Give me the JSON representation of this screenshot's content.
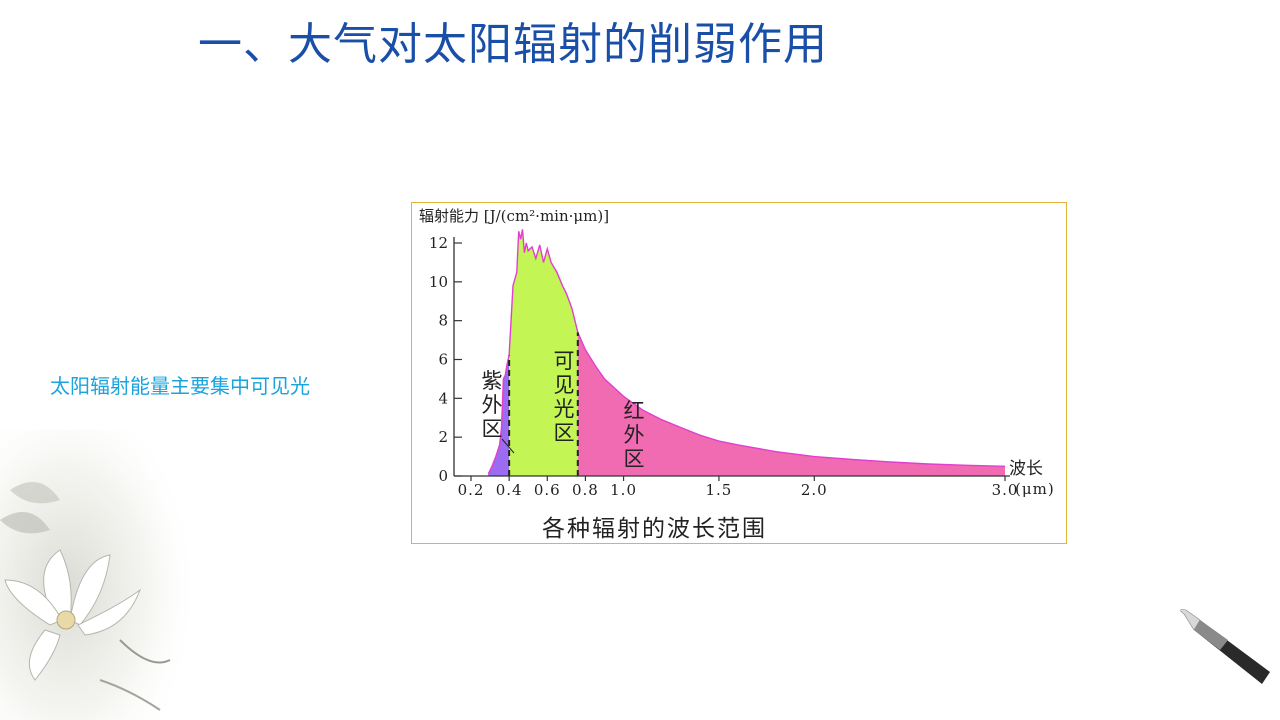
{
  "slide": {
    "title": "一、大气对太阳辐射的削弱作用",
    "note": "太阳辐射能量主要集中可见光",
    "title_color": "#1a4fa8",
    "note_color": "#1aa3dd"
  },
  "chart_data": {
    "type": "area",
    "ylabel": "辐射能力 [J/(cm²·min·μm)]",
    "xlabel": "波长",
    "x_unit": "(μm)",
    "caption": "各种辐射的波长范围",
    "xlim": [
      0.2,
      3.0
    ],
    "ylim": [
      0,
      12
    ],
    "x_ticks": [
      0.2,
      0.4,
      0.6,
      0.8,
      1.0,
      1.5,
      2.0,
      3.0
    ],
    "x_tick_labels": [
      "0.2",
      "0.4",
      "0.6",
      "0.8",
      "1.0",
      "1.5",
      "2.0",
      "3.0"
    ],
    "y_ticks": [
      0,
      2,
      4,
      6,
      8,
      10,
      12
    ],
    "y_tick_labels": [
      "0",
      "2",
      "4",
      "6",
      "8",
      "10",
      "12"
    ],
    "boundaries": [
      0.4,
      0.76
    ],
    "x": [
      0.29,
      0.31,
      0.33,
      0.35,
      0.36,
      0.37,
      0.38,
      0.39,
      0.4,
      0.42,
      0.44,
      0.45,
      0.46,
      0.47,
      0.48,
      0.49,
      0.5,
      0.52,
      0.54,
      0.56,
      0.58,
      0.6,
      0.62,
      0.65,
      0.68,
      0.7,
      0.73,
      0.76,
      0.8,
      0.85,
      0.9,
      1.0,
      1.1,
      1.2,
      1.3,
      1.4,
      1.5,
      1.6,
      1.8,
      2.0,
      2.2,
      2.4,
      2.6,
      2.8,
      3.0
    ],
    "y": [
      0.1,
      0.5,
      1.0,
      1.6,
      2.5,
      5.0,
      5.2,
      5.8,
      6.2,
      9.8,
      10.5,
      12.6,
      12.2,
      12.7,
      11.5,
      12.0,
      11.6,
      11.8,
      11.2,
      11.9,
      11.0,
      11.7,
      11.0,
      10.5,
      9.8,
      9.4,
      8.6,
      7.4,
      6.5,
      5.7,
      5.0,
      4.1,
      3.4,
      2.9,
      2.5,
      2.1,
      1.8,
      1.6,
      1.25,
      1.0,
      0.85,
      0.72,
      0.62,
      0.55,
      0.5
    ],
    "regions": [
      {
        "label": "紫外区",
        "chars": [
          "紫",
          "外",
          "区"
        ],
        "color": "#9b6cf2",
        "from": 0.2,
        "to": 0.4
      },
      {
        "label": "可见光区",
        "chars": [
          "可",
          "见",
          "光",
          "区"
        ],
        "color": "#c3f555",
        "from": 0.4,
        "to": 0.76
      },
      {
        "label": "红外区",
        "chars": [
          "红",
          "外",
          "区"
        ],
        "color": "#f06bb1",
        "from": 0.76,
        "to": 3.0
      }
    ],
    "outline_color": "#e23fd0",
    "grid": false,
    "legend": "none"
  }
}
